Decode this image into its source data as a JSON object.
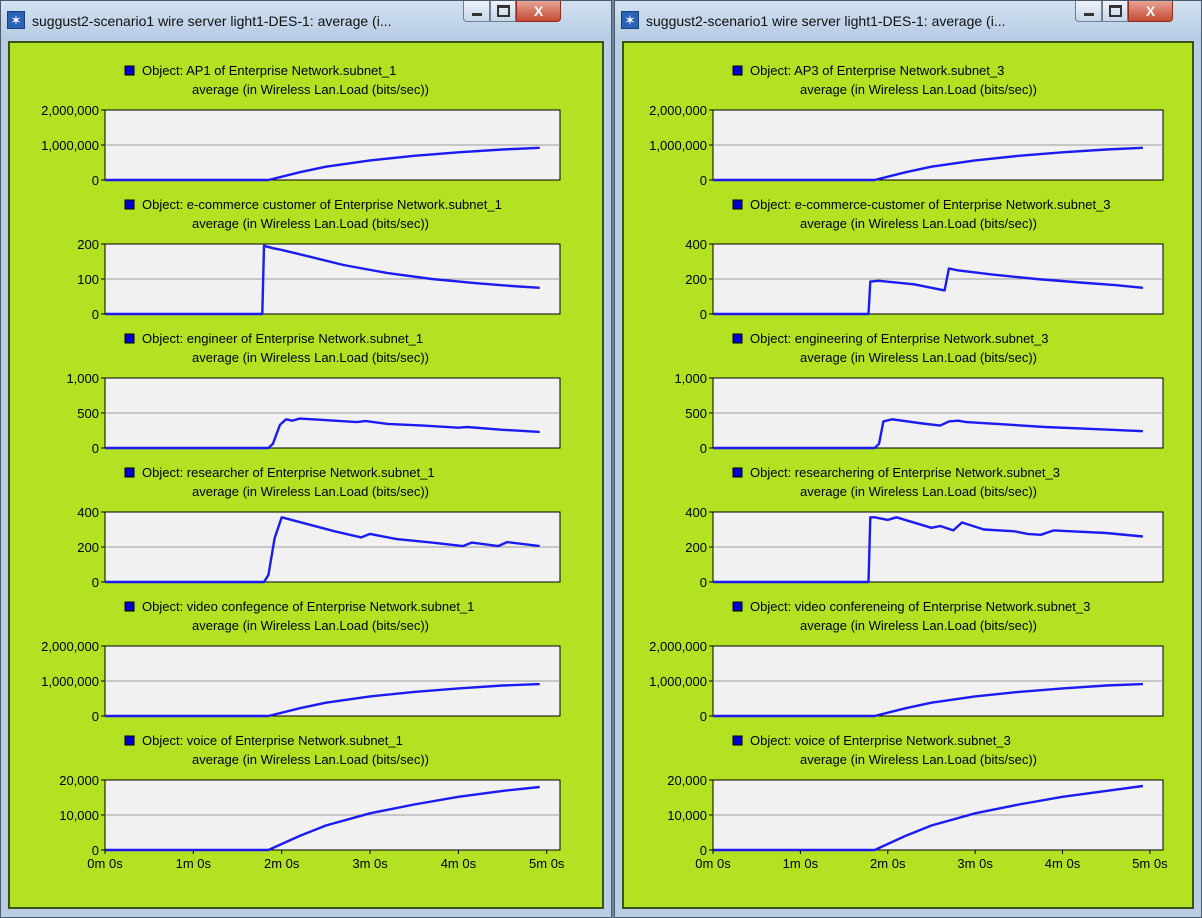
{
  "windows": [
    {
      "id": "left",
      "title": "suggust2-scenario1 wire server light1-DES-1: average (i...",
      "buttons": {
        "close": "X"
      },
      "colors": {
        "panel_bg": "#b3e223",
        "plot_bg": "#f1f1f1",
        "line": "#1b1bf2"
      },
      "x_ticks": [
        "0m 0s",
        "1m 0s",
        "2m 0s",
        "3m 0s",
        "4m 0s",
        "5m 0s"
      ],
      "panels": [
        {
          "object": "Object: AP1 of Enterprise Network.subnet_1",
          "stat": "average (in Wireless Lan.Load (bits/sec))",
          "y_ticks": [
            "2,000,000",
            "1,000,000",
            "0"
          ]
        },
        {
          "object": "Object: e-commerce customer of Enterprise Network.subnet_1",
          "stat": "average (in Wireless Lan.Load (bits/sec))",
          "y_ticks": [
            "200",
            "100",
            "0"
          ]
        },
        {
          "object": "Object: engineer of Enterprise Network.subnet_1",
          "stat": "average (in Wireless Lan.Load (bits/sec))",
          "y_ticks": [
            "1,000",
            "500",
            "0"
          ]
        },
        {
          "object": "Object: researcher of Enterprise Network.subnet_1",
          "stat": "average (in Wireless Lan.Load (bits/sec))",
          "y_ticks": [
            "400",
            "200",
            "0"
          ]
        },
        {
          "object": "Object: video confegence of Enterprise Network.subnet_1",
          "stat": "average (in Wireless Lan.Load (bits/sec))",
          "y_ticks": [
            "2,000,000",
            "1,000,000",
            "0"
          ]
        },
        {
          "object": "Object: voice of Enterprise Network.subnet_1",
          "stat": "average (in Wireless Lan.Load (bits/sec))",
          "y_ticks": [
            "20,000",
            "10,000",
            "0"
          ]
        }
      ]
    },
    {
      "id": "right",
      "title": "suggust2-scenario1 wire server light1-DES-1: average (i...",
      "buttons": {
        "close": "X"
      },
      "colors": {
        "panel_bg": "#b3e223",
        "plot_bg": "#f1f1f1",
        "line": "#1b1bf2"
      },
      "x_ticks": [
        "0m 0s",
        "1m 0s",
        "2m 0s",
        "3m 0s",
        "4m 0s",
        "5m 0s"
      ],
      "panels": [
        {
          "object": "Object: AP3 of Enterprise Network.subnet_3",
          "stat": "average (in Wireless Lan.Load (bits/sec))",
          "y_ticks": [
            "2,000,000",
            "1,000,000",
            "0"
          ]
        },
        {
          "object": "Object: e-commerce-customer of Enterprise Network.subnet_3",
          "stat": "average (in Wireless Lan.Load (bits/sec))",
          "y_ticks": [
            "400",
            "200",
            "0"
          ]
        },
        {
          "object": "Object: engineering of Enterprise Network.subnet_3",
          "stat": "average (in Wireless Lan.Load (bits/sec))",
          "y_ticks": [
            "1,000",
            "500",
            "0"
          ]
        },
        {
          "object": "Object: researchering of Enterprise Network.subnet_3",
          "stat": "average (in Wireless Lan.Load (bits/sec))",
          "y_ticks": [
            "400",
            "200",
            "0"
          ]
        },
        {
          "object": "Object: video confereneing of Enterprise Network.subnet_3",
          "stat": "average (in Wireless Lan.Load (bits/sec))",
          "y_ticks": [
            "2,000,000",
            "1,000,000",
            "0"
          ]
        },
        {
          "object": "Object: voice of Enterprise Network.subnet_3",
          "stat": "average (in Wireless Lan.Load (bits/sec))",
          "y_ticks": [
            "20,000",
            "10,000",
            "0"
          ]
        }
      ]
    }
  ],
  "chart_data": [
    {
      "type": "line",
      "title": "Object: AP1 of Enterprise Network.subnet_1",
      "ylabel": "average (in Wireless Lan.Load (bits/sec))",
      "x_unit": "minutes",
      "ylim": [
        0,
        2000000
      ],
      "series": [
        {
          "x": [
            0,
            1.85,
            2.2,
            2.5,
            3,
            3.5,
            4,
            4.5,
            4.92
          ],
          "values": [
            0,
            0,
            220000,
            380000,
            560000,
            690000,
            790000,
            870000,
            920000
          ]
        }
      ]
    },
    {
      "type": "line",
      "title": "Object: e-commerce customer of Enterprise Network.subnet_1",
      "ylabel": "average (in Wireless Lan.Load (bits/sec))",
      "x_unit": "minutes",
      "ylim": [
        0,
        200
      ],
      "series": [
        {
          "x": [
            0,
            1.78,
            1.8,
            1.9,
            2.0,
            2.3,
            2.7,
            3.2,
            3.7,
            4.2,
            4.6,
            4.92
          ],
          "values": [
            0,
            0,
            195,
            188,
            183,
            165,
            140,
            117,
            100,
            88,
            80,
            75
          ]
        }
      ]
    },
    {
      "type": "line",
      "title": "Object: engineer of Enterprise Network.subnet_1",
      "ylabel": "average (in Wireless Lan.Load (bits/sec))",
      "x_unit": "minutes",
      "ylim": [
        0,
        1000
      ],
      "series": [
        {
          "x": [
            0,
            1.85,
            1.9,
            1.98,
            2.05,
            2.12,
            2.2,
            2.4,
            2.6,
            2.85,
            2.95,
            3.2,
            3.6,
            4.0,
            4.1,
            4.5,
            4.92
          ],
          "values": [
            0,
            0,
            60,
            330,
            410,
            390,
            420,
            405,
            390,
            370,
            385,
            345,
            320,
            290,
            300,
            260,
            230
          ]
        }
      ]
    },
    {
      "type": "line",
      "title": "Object: researcher of Enterprise Network.subnet_1",
      "ylabel": "average (in Wireless Lan.Load (bits/sec))",
      "x_unit": "minutes",
      "ylim": [
        0,
        400
      ],
      "series": [
        {
          "x": [
            0,
            1.8,
            1.85,
            1.92,
            2.0,
            2.3,
            2.6,
            2.9,
            3.0,
            3.3,
            3.7,
            4.05,
            4.15,
            4.45,
            4.55,
            4.92
          ],
          "values": [
            0,
            0,
            40,
            250,
            370,
            330,
            290,
            255,
            275,
            245,
            225,
            205,
            225,
            205,
            228,
            205
          ]
        }
      ]
    },
    {
      "type": "line",
      "title": "Object: video confegence of Enterprise Network.subnet_1",
      "ylabel": "average (in Wireless Lan.Load (bits/sec))",
      "x_unit": "minutes",
      "ylim": [
        0,
        2000000
      ],
      "series": [
        {
          "x": [
            0,
            1.85,
            2.2,
            2.5,
            3,
            3.5,
            4,
            4.5,
            4.92
          ],
          "values": [
            0,
            0,
            220000,
            380000,
            560000,
            690000,
            790000,
            870000,
            910000
          ]
        }
      ]
    },
    {
      "type": "line",
      "title": "Object: voice of Enterprise Network.subnet_1",
      "ylabel": "average (in Wireless Lan.Load (bits/sec))",
      "x_unit": "minutes",
      "ylim": [
        0,
        20000
      ],
      "series": [
        {
          "x": [
            0,
            1.85,
            2.2,
            2.5,
            3,
            3.5,
            4,
            4.5,
            4.92
          ],
          "values": [
            0,
            0,
            4000,
            7000,
            10500,
            13000,
            15200,
            16900,
            18000
          ]
        }
      ]
    },
    {
      "type": "line",
      "title": "Object: AP3 of Enterprise Network.subnet_3",
      "ylabel": "average (in Wireless Lan.Load (bits/sec))",
      "x_unit": "minutes",
      "ylim": [
        0,
        2000000
      ],
      "series": [
        {
          "x": [
            0,
            1.85,
            2.2,
            2.5,
            3,
            3.5,
            4,
            4.5,
            4.92
          ],
          "values": [
            0,
            0,
            220000,
            380000,
            560000,
            690000,
            790000,
            870000,
            920000
          ]
        }
      ]
    },
    {
      "type": "line",
      "title": "Object: e-commerce-customer of Enterprise Network.subnet_3",
      "ylabel": "average (in Wireless Lan.Load (bits/sec))",
      "x_unit": "minutes",
      "ylim": [
        0,
        400
      ],
      "series": [
        {
          "x": [
            0,
            1.78,
            1.8,
            1.9,
            2.3,
            2.65,
            2.7,
            2.8,
            3.2,
            3.7,
            4.2,
            4.6,
            4.92
          ],
          "values": [
            0,
            0,
            185,
            190,
            170,
            135,
            260,
            250,
            225,
            200,
            180,
            165,
            150
          ]
        }
      ]
    },
    {
      "type": "line",
      "title": "Object: engineering of Enterprise Network.subnet_3",
      "ylabel": "average (in Wireless Lan.Load (bits/sec))",
      "x_unit": "minutes",
      "ylim": [
        0,
        1000
      ],
      "series": [
        {
          "x": [
            0,
            1.85,
            1.9,
            1.95,
            2.05,
            2.4,
            2.6,
            2.7,
            2.8,
            2.9,
            3.3,
            3.8,
            4.3,
            4.92
          ],
          "values": [
            0,
            0,
            60,
            380,
            410,
            350,
            320,
            380,
            390,
            370,
            340,
            300,
            275,
            240
          ]
        }
      ]
    },
    {
      "type": "line",
      "title": "Object: researchering of Enterprise Network.subnet_3",
      "ylabel": "average (in Wireless Lan.Load (bits/sec))",
      "x_unit": "minutes",
      "ylim": [
        0,
        400
      ],
      "series": [
        {
          "x": [
            0,
            1.78,
            1.8,
            1.85,
            2.0,
            2.1,
            2.5,
            2.6,
            2.75,
            2.85,
            3.1,
            3.45,
            3.6,
            3.75,
            3.9,
            4.1,
            4.5,
            4.92
          ],
          "values": [
            0,
            0,
            370,
            370,
            355,
            370,
            310,
            320,
            295,
            340,
            300,
            290,
            275,
            270,
            295,
            290,
            280,
            260
          ]
        }
      ]
    },
    {
      "type": "line",
      "title": "Object: video confereneing of Enterprise Network.subnet_3",
      "ylabel": "average (in Wireless Lan.Load (bits/sec))",
      "x_unit": "minutes",
      "ylim": [
        0,
        2000000
      ],
      "series": [
        {
          "x": [
            0,
            1.85,
            2.2,
            2.5,
            3,
            3.5,
            4,
            4.5,
            4.92
          ],
          "values": [
            0,
            0,
            220000,
            380000,
            560000,
            690000,
            790000,
            870000,
            910000
          ]
        }
      ]
    },
    {
      "type": "line",
      "title": "Object: voice of Enterprise Network.subnet_3",
      "ylabel": "average (in Wireless Lan.Load (bits/sec))",
      "x_unit": "minutes",
      "ylim": [
        0,
        20000
      ],
      "series": [
        {
          "x": [
            0,
            1.85,
            2.2,
            2.5,
            3,
            3.5,
            4,
            4.5,
            4.92
          ],
          "values": [
            0,
            0,
            4000,
            7000,
            10500,
            13000,
            15200,
            16900,
            18300
          ]
        }
      ]
    }
  ]
}
